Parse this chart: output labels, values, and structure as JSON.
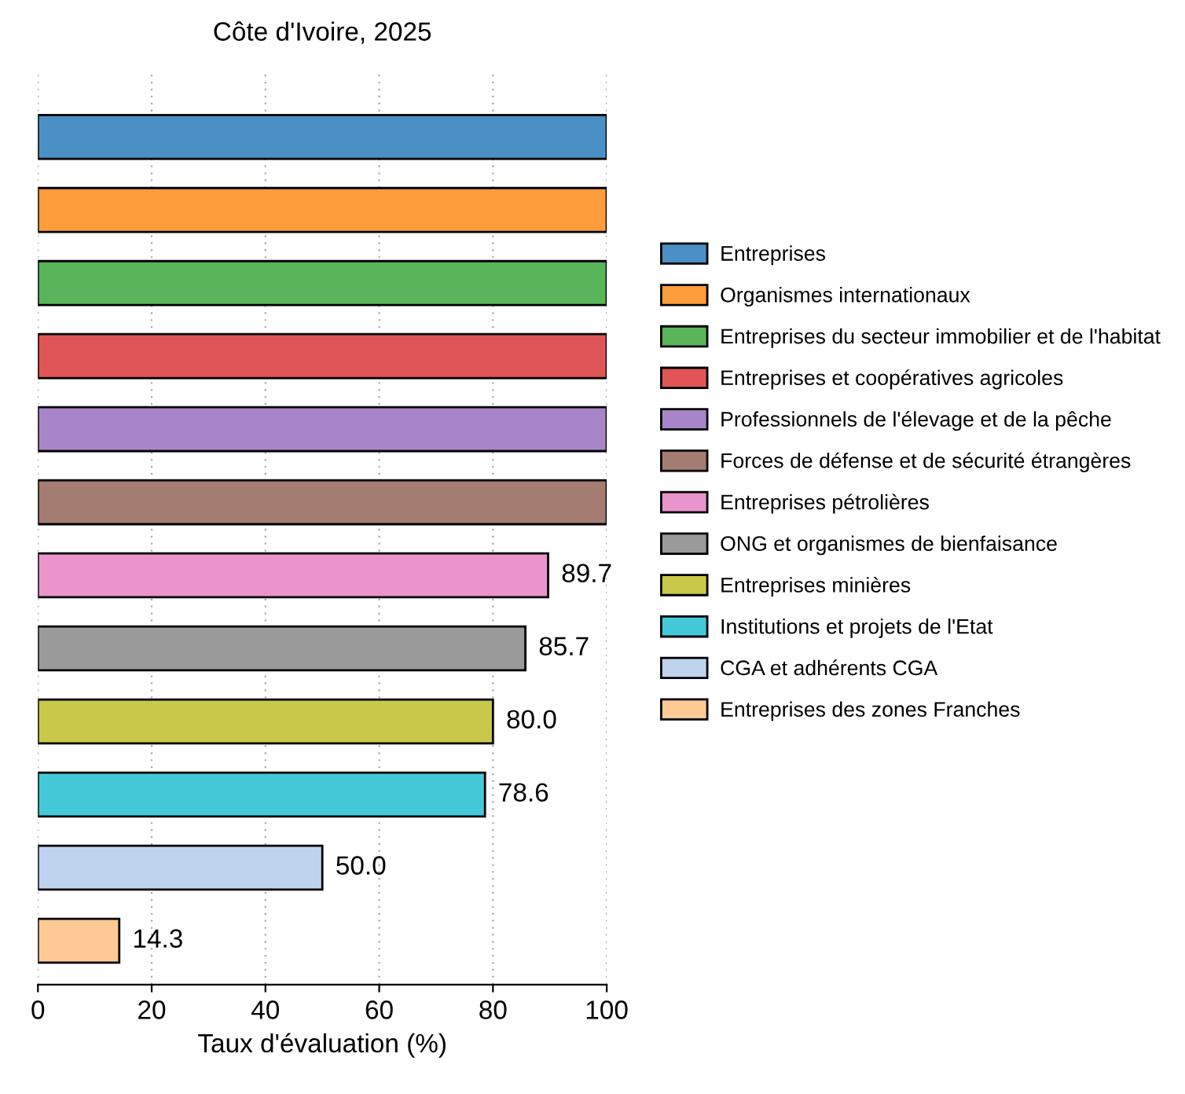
{
  "chart_data": {
    "type": "bar",
    "orientation": "horizontal",
    "title": "Côte d'Ivoire, 2025",
    "xlabel": "Taux d'évaluation (%)",
    "categories": [
      null,
      null,
      null,
      null,
      null,
      null,
      null,
      null,
      null,
      null,
      null,
      null
    ],
    "series": [
      {
        "name": "Entreprises",
        "color": "#4a90c4",
        "values": [
          100,
          null,
          null,
          null,
          null,
          null,
          null,
          null,
          null,
          null,
          null,
          null
        ],
        "value_labels": [
          null,
          null,
          null,
          null,
          null,
          null,
          null,
          null,
          null,
          null,
          null,
          null
        ]
      },
      {
        "name": "Organismes internationaux",
        "color": "#ff9c3c",
        "values": [
          null,
          100,
          null,
          null,
          null,
          null,
          null,
          null,
          null,
          null,
          null,
          null
        ],
        "value_labels": [
          null,
          null,
          null,
          null,
          null,
          null,
          null,
          null,
          null,
          null,
          null,
          null
        ]
      },
      {
        "name": "Entreprises du secteur immobilier et de l'habitat",
        "color": "#58b55a",
        "values": [
          null,
          null,
          100,
          null,
          null,
          null,
          null,
          null,
          null,
          null,
          null,
          null
        ],
        "value_labels": [
          null,
          null,
          null,
          null,
          null,
          null,
          null,
          null,
          null,
          null,
          null,
          null
        ]
      },
      {
        "name": "Entreprises et coopératives agricoles",
        "color": "#e05657",
        "values": [
          null,
          null,
          null,
          100,
          null,
          null,
          null,
          null,
          null,
          null,
          null,
          null
        ],
        "value_labels": [
          null,
          null,
          null,
          null,
          null,
          null,
          null,
          null,
          null,
          null,
          null,
          null
        ]
      },
      {
        "name": "Professionnels de l'élevage et de la pêche",
        "color": "#a885c8",
        "values": [
          null,
          null,
          null,
          null,
          100,
          null,
          null,
          null,
          null,
          null,
          null,
          null
        ],
        "value_labels": [
          null,
          null,
          null,
          null,
          null,
          null,
          null,
          null,
          null,
          null,
          null,
          null
        ]
      },
      {
        "name": "Forces de défense et de sécurité étrangères",
        "color": "#a57c72",
        "values": [
          null,
          null,
          null,
          null,
          null,
          100,
          null,
          null,
          null,
          null,
          null,
          null
        ],
        "value_labels": [
          null,
          null,
          null,
          null,
          null,
          null,
          null,
          null,
          null,
          null,
          null,
          null
        ]
      },
      {
        "name": "Entreprises pétrolières",
        "color": "#e994cc",
        "values": [
          null,
          null,
          null,
          null,
          null,
          null,
          89.7,
          null,
          null,
          null,
          null,
          null
        ],
        "value_labels": [
          null,
          null,
          null,
          null,
          null,
          null,
          "89.7",
          null,
          null,
          null,
          null,
          null
        ]
      },
      {
        "name": "ONG et organismes de bienfaisance",
        "color": "#9a9a9a",
        "values": [
          null,
          null,
          null,
          null,
          null,
          null,
          null,
          85.7,
          null,
          null,
          null,
          null
        ],
        "value_labels": [
          null,
          null,
          null,
          null,
          null,
          null,
          null,
          "85.7",
          null,
          null,
          null,
          null
        ]
      },
      {
        "name": "Entreprises minières",
        "color": "#c8c84a",
        "values": [
          null,
          null,
          null,
          null,
          null,
          null,
          null,
          null,
          80.0,
          null,
          null,
          null
        ],
        "value_labels": [
          null,
          null,
          null,
          null,
          null,
          null,
          null,
          null,
          "80.0",
          null,
          null,
          null
        ]
      },
      {
        "name": "Institutions et projets de l'Etat",
        "color": "#44c9d9",
        "values": [
          null,
          null,
          null,
          null,
          null,
          null,
          null,
          null,
          null,
          78.6,
          null,
          null
        ],
        "value_labels": [
          null,
          null,
          null,
          null,
          null,
          null,
          null,
          null,
          null,
          "78.6",
          null,
          null
        ]
      },
      {
        "name": "CGA et adhérents CGA",
        "color": "#bfd3ee",
        "values": [
          null,
          null,
          null,
          null,
          null,
          null,
          null,
          null,
          null,
          null,
          50.0,
          null
        ],
        "value_labels": [
          null,
          null,
          null,
          null,
          null,
          null,
          null,
          null,
          null,
          null,
          "50.0",
          null
        ]
      },
      {
        "name": "Entreprises des zones Franches",
        "color": "#ffc995",
        "values": [
          null,
          null,
          null,
          null,
          null,
          null,
          null,
          null,
          null,
          null,
          null,
          14.3
        ],
        "value_labels": [
          null,
          null,
          null,
          null,
          null,
          null,
          null,
          null,
          null,
          null,
          null,
          "14.3"
        ]
      }
    ],
    "xlim": [
      0,
      100
    ],
    "xticks": [
      0,
      20,
      40,
      60,
      80,
      100
    ],
    "grid": "x",
    "legend": "right"
  }
}
